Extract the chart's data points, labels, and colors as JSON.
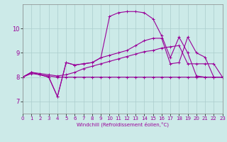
{
  "xlabel": "Windchill (Refroidissement éolien,°C)",
  "xlim": [
    0,
    23
  ],
  "ylim": [
    6.5,
    11.0
  ],
  "yticks": [
    7,
    8,
    9,
    10
  ],
  "xticks": [
    0,
    1,
    2,
    3,
    4,
    5,
    6,
    7,
    8,
    9,
    10,
    11,
    12,
    13,
    14,
    15,
    16,
    17,
    18,
    19,
    20,
    21,
    22,
    23
  ],
  "bg_color": "#cceae8",
  "grid_color": "#aacccc",
  "line_color": "#990099",
  "lines": [
    {
      "x": [
        0,
        1,
        2,
        3,
        4,
        5,
        6,
        7,
        8,
        9,
        10,
        11,
        12,
        13,
        14,
        15,
        16,
        17,
        18,
        19,
        20,
        21,
        22,
        23
      ],
      "y": [
        8.0,
        8.15,
        8.1,
        8.05,
        8.0,
        8.0,
        8.0,
        8.0,
        8.0,
        8.0,
        8.0,
        8.0,
        8.0,
        8.0,
        8.0,
        8.0,
        8.0,
        8.0,
        8.0,
        8.0,
        8.0,
        8.0,
        8.0,
        8.0
      ]
    },
    {
      "x": [
        0,
        1,
        2,
        3,
        4,
        5,
        6,
        7,
        8,
        9,
        10,
        11,
        12,
        13,
        14,
        15,
        16,
        17,
        18,
        19,
        20,
        21,
        22,
        23
      ],
      "y": [
        8.0,
        8.2,
        8.15,
        8.1,
        8.05,
        8.1,
        8.2,
        8.35,
        8.45,
        8.55,
        8.65,
        8.75,
        8.85,
        8.95,
        9.05,
        9.1,
        9.2,
        9.25,
        9.3,
        8.55,
        8.55,
        8.55,
        8.55,
        8.0
      ]
    },
    {
      "x": [
        0,
        1,
        2,
        3,
        4,
        5,
        6,
        7,
        8,
        9,
        10,
        11,
        12,
        13,
        14,
        15,
        16,
        17,
        18,
        19,
        20,
        21,
        22,
        23
      ],
      "y": [
        8.0,
        8.2,
        8.1,
        8.0,
        7.2,
        8.6,
        8.5,
        8.55,
        8.6,
        8.8,
        8.9,
        9.0,
        9.1,
        9.3,
        9.5,
        9.6,
        9.6,
        8.55,
        8.6,
        9.65,
        9.0,
        8.82,
        8.0,
        8.0
      ]
    },
    {
      "x": [
        0,
        1,
        2,
        3,
        4,
        5,
        6,
        7,
        8,
        9,
        10,
        11,
        12,
        13,
        14,
        15,
        16,
        17,
        18,
        19,
        20,
        21,
        22,
        23
      ],
      "y": [
        8.0,
        8.2,
        8.1,
        8.0,
        7.2,
        8.6,
        8.5,
        8.55,
        8.6,
        8.8,
        10.5,
        10.65,
        10.7,
        10.7,
        10.65,
        10.4,
        9.7,
        8.8,
        9.65,
        9.0,
        8.05,
        8.0,
        8.0,
        8.0
      ]
    }
  ],
  "marker": "+",
  "markersize": 3,
  "linewidth": 0.8
}
